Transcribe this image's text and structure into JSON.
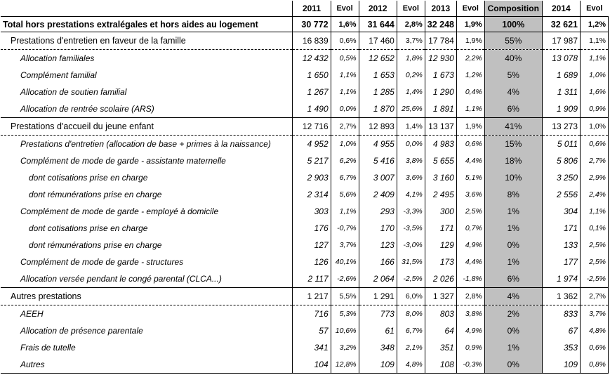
{
  "columns": [
    "",
    "2011",
    "Evol",
    "2012",
    "Evol",
    "2013",
    "Evol",
    "Composition",
    "2014",
    "Evol"
  ],
  "rows": [
    {
      "kind": "total",
      "label": "Total hors prestations extralégales et hors aides au logement",
      "v2011": "30 772",
      "e2011": "1,6%",
      "v2012": "31 644",
      "e2012": "2,8%",
      "v2013": "32 248",
      "e2013": "1,9%",
      "comp": "100%",
      "v2014": "32 621",
      "e2014": "1,2%"
    },
    {
      "kind": "group",
      "label": "Prestations d'entretien en faveur de la famille",
      "v2011": "16 839",
      "e2011": "0,6%",
      "v2012": "17 460",
      "e2012": "3,7%",
      "v2013": "17 784",
      "e2013": "1,9%",
      "comp": "55%",
      "v2014": "17 987",
      "e2014": "1,1%"
    },
    {
      "kind": "item",
      "label": "Allocation familiales",
      "v2011": "12 432",
      "e2011": "0,5%",
      "v2012": "12 652",
      "e2012": "1,8%",
      "v2013": "12 930",
      "e2013": "2,2%",
      "comp": "40%",
      "v2014": "13 078",
      "e2014": "1,1%"
    },
    {
      "kind": "item",
      "label": "Complément familial",
      "v2011": "1 650",
      "e2011": "1,1%",
      "v2012": "1 653",
      "e2012": "0,2%",
      "v2013": "1 673",
      "e2013": "1,2%",
      "comp": "5%",
      "v2014": "1 689",
      "e2014": "1,0%"
    },
    {
      "kind": "item",
      "label": "Allocation de soutien familial",
      "v2011": "1 267",
      "e2011": "1,1%",
      "v2012": "1 285",
      "e2012": "1,4%",
      "v2013": "1 290",
      "e2013": "0,4%",
      "comp": "4%",
      "v2014": "1 311",
      "e2014": "1,6%"
    },
    {
      "kind": "item",
      "label": "Allocation de rentrée scolaire (ARS)",
      "v2011": "1 490",
      "e2011": "0,0%",
      "v2012": "1 870",
      "e2012": "25,6%",
      "v2013": "1 891",
      "e2013": "1,1%",
      "comp": "6%",
      "v2014": "1 909",
      "e2014": "0,9%"
    },
    {
      "kind": "group",
      "label": "Prestations d'accueil du jeune enfant",
      "v2011": "12 716",
      "e2011": "2,7%",
      "v2012": "12 893",
      "e2012": "1,4%",
      "v2013": "13 137",
      "e2013": "1,9%",
      "comp": "41%",
      "v2014": "13 273",
      "e2014": "1,0%"
    },
    {
      "kind": "item",
      "label": "Prestations d'entretien (allocation de base + primes à la naissance)",
      "v2011": "4 952",
      "e2011": "1,0%",
      "v2012": "4 955",
      "e2012": "0,0%",
      "v2013": "4 983",
      "e2013": "0,6%",
      "comp": "15%",
      "v2014": "5 011",
      "e2014": "0,6%"
    },
    {
      "kind": "item",
      "label": "Complément de mode de garde - assistante maternelle",
      "v2011": "5 217",
      "e2011": "6,2%",
      "v2012": "5 416",
      "e2012": "3,8%",
      "v2013": "5 655",
      "e2013": "4,4%",
      "comp": "18%",
      "v2014": "5 806",
      "e2014": "2,7%"
    },
    {
      "kind": "sub",
      "label": "dont cotisations prise en charge",
      "v2011": "2 903",
      "e2011": "6,7%",
      "v2012": "3 007",
      "e2012": "3,6%",
      "v2013": "3 160",
      "e2013": "5,1%",
      "comp": "10%",
      "v2014": "3 250",
      "e2014": "2,9%"
    },
    {
      "kind": "sub",
      "label": "dont rémunérations prise en charge",
      "v2011": "2 314",
      "e2011": "5,6%",
      "v2012": "2 409",
      "e2012": "4,1%",
      "v2013": "2 495",
      "e2013": "3,6%",
      "comp": "8%",
      "v2014": "2 556",
      "e2014": "2,4%"
    },
    {
      "kind": "item",
      "label": "Complément de mode de garde - employé à domicile",
      "v2011": "303",
      "e2011": "1,1%",
      "v2012": "293",
      "e2012": "-3,3%",
      "v2013": "300",
      "e2013": "2,5%",
      "comp": "1%",
      "v2014": "304",
      "e2014": "1,1%"
    },
    {
      "kind": "sub",
      "label": "dont cotisations prise en charge",
      "v2011": "176",
      "e2011": "-0,7%",
      "v2012": "170",
      "e2012": "-3,5%",
      "v2013": "171",
      "e2013": "0,7%",
      "comp": "1%",
      "v2014": "171",
      "e2014": "0,1%"
    },
    {
      "kind": "sub",
      "label": "dont rémunérations prise en charge",
      "v2011": "127",
      "e2011": "3,7%",
      "v2012": "123",
      "e2012": "-3,0%",
      "v2013": "129",
      "e2013": "4,9%",
      "comp": "0%",
      "v2014": "133",
      "e2014": "2,5%"
    },
    {
      "kind": "item",
      "label": "Complément de mode de garde - structures",
      "v2011": "126",
      "e2011": "40,1%",
      "v2012": "166",
      "e2012": "31,5%",
      "v2013": "173",
      "e2013": "4,4%",
      "comp": "1%",
      "v2014": "177",
      "e2014": "2,5%"
    },
    {
      "kind": "item",
      "label": "Allocation versée pendant le congé parental (CLCA...)",
      "v2011": "2 117",
      "e2011": "-2,6%",
      "v2012": "2 064",
      "e2012": "-2,5%",
      "v2013": "2 026",
      "e2013": "-1,8%",
      "comp": "6%",
      "v2014": "1 974",
      "e2014": "-2,5%"
    },
    {
      "kind": "group",
      "label": "Autres prestations",
      "v2011": "1 217",
      "e2011": "5,5%",
      "v2012": "1 291",
      "e2012": "6,0%",
      "v2013": "1 327",
      "e2013": "2,8%",
      "comp": "4%",
      "v2014": "1 362",
      "e2014": "2,7%"
    },
    {
      "kind": "item",
      "label": "AEEH",
      "v2011": "716",
      "e2011": "5,3%",
      "v2012": "773",
      "e2012": "8,0%",
      "v2013": "803",
      "e2013": "3,8%",
      "comp": "2%",
      "v2014": "833",
      "e2014": "3,7%"
    },
    {
      "kind": "item",
      "label": "Allocation de présence parentale",
      "v2011": "57",
      "e2011": "10,6%",
      "v2012": "61",
      "e2012": "6,7%",
      "v2013": "64",
      "e2013": "4,9%",
      "comp": "0%",
      "v2014": "67",
      "e2014": "4,8%"
    },
    {
      "kind": "item",
      "label": "Frais de tutelle",
      "v2011": "341",
      "e2011": "3,2%",
      "v2012": "348",
      "e2012": "2,1%",
      "v2013": "351",
      "e2013": "0,9%",
      "comp": "1%",
      "v2014": "353",
      "e2014": "0,6%"
    },
    {
      "kind": "item",
      "label": "Autres",
      "v2011": "104",
      "e2011": "12,8%",
      "v2012": "109",
      "e2012": "4,8%",
      "v2013": "108",
      "e2013": "-0,3%",
      "comp": "0%",
      "v2014": "109",
      "e2014": "0,8%"
    }
  ],
  "colors": {
    "composition_fill": "#c0c0c0",
    "rule": "#000000"
  }
}
